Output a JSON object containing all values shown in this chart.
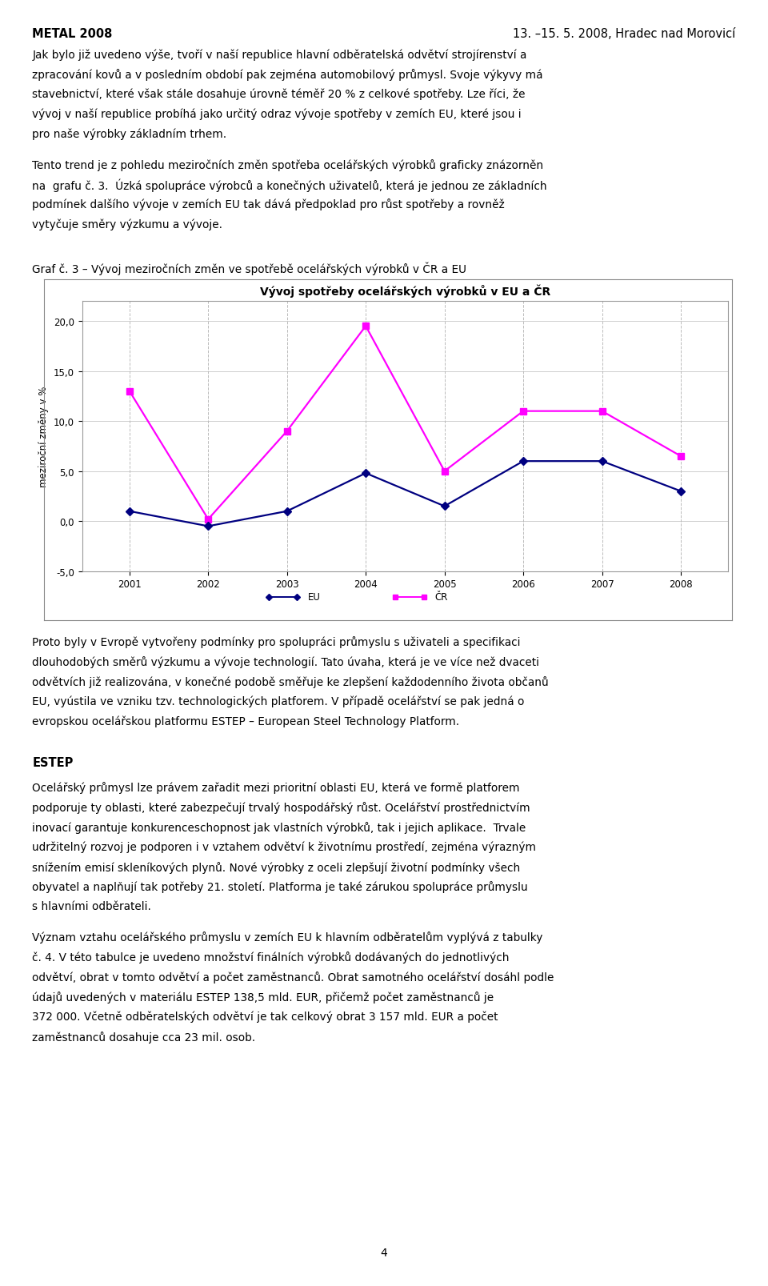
{
  "title": "Vývoj spotřeby ocelářských výrobků v EU a ČR",
  "ylabel": "meziroční změny v %",
  "years": [
    2001,
    2002,
    2003,
    2004,
    2005,
    2006,
    2007,
    2008
  ],
  "eu_values": [
    13.0,
    0.2,
    9.0,
    19.5,
    5.0,
    11.0,
    11.0,
    6.5
  ],
  "cr_values": [
    1.0,
    -0.5,
    1.0,
    4.8,
    1.5,
    6.0,
    6.0,
    3.0
  ],
  "eu_color": "#FF00FF",
  "cr_color": "#000080",
  "eu_label": "EU",
  "cr_label": "ČR",
  "ylim_min": -5.0,
  "ylim_max": 22.0,
  "yticks": [
    -5.0,
    0.0,
    5.0,
    10.0,
    15.0,
    20.0
  ],
  "ytick_labels": [
    "-5,0",
    "0,0",
    "5,0",
    "10,0",
    "15,0",
    "20,0"
  ],
  "bg_color": "#FFFFFF",
  "plot_bg_color": "#FFFFFF",
  "grid_color": "#BBBBBB",
  "title_fontsize": 10,
  "axis_fontsize": 8.5,
  "legend_fontsize": 8.5,
  "header_left": "METAL 2008",
  "header_right": "13. –15. 5. 2008, Hradec nad Morovicí",
  "para1": "Jak bylo již uvedeno výše, tvoří v naší republice hlavní odběratelská odvětví strojírenství a zpracování kovů a v posledním období pak zejména automobilový průmysl. Svoje výkyvy má stavebníctví, které však stále dosahuje úrovně téměř 20 % z celkové spotřeby. Lze říci, že vývoj v naší republice probíhá jako určitý odraz vývoje spotřeby v zemích EU, které jsou i pro naše výrobky základním trhem.",
  "para2": "Tento trend je z pohledu meziročních změn spotřeba ocelářských výrobků graficky znázorněn na  grafu č. 3.  Úzká spolupráce výrobců a konečných uživatelů, která je jednou ze základních podmínek dalšího vývoje v zemích EU tak dává předpoklad pro růst spotřeby a rovněž vytyčuje směry výzkumu a vývoje.",
  "graf_label": "Graf č. 3 – Vývoj meziročních změn ve spotřebě ocelářských výrobků v ČR a EU",
  "para3": "Proto byly v Evropě vytvořeny podmínky pro spolupráci průmyslu s uživateli a specifikaci dlouhodobých směrů výzkumu a vývoje technologií. Tato úhava, která je ve více než dvaceti odvětvích již realizována, v konečné podobě směřuje ke zlepšení každodenního života občanů EU, vyústila ve vzniku tzv. technologických platforem. V případě ocelářství se pak jedná o evropskou ocelářskou platformu ESTEP – European Steel Technology Platform.",
  "estep_title": "ESTEP",
  "para4": "Ocelářský průmysl lze právem zařadit mezi prioritní oblasti EU, která ve formě platforem podporuje ty oblasti, které zabezpečují trvalý hospodářský růst. Ocelářství prostřednictvím inovací garantuje konkurenceschopnost jak vlastních výrobků, tak i jejich aplikace.  Trvale udržitelný rozvoj je podporen i v vztahem odvětví k životnímu prostředí, zejména výrazným snížením emisí skleníkových plynů. Nové výrobky z oceli zlepšují životní podmínky všech obyvatel a naplňují tak potřeby 21. století. Platforma je také zárukou spolupráce průmyslu s hlavními odběrateli.",
  "para5": "Význam vztahu ocelářského průmyslu v zemích EU k hlavním odběratelům vyplývá z tabulky č. 4. V této tabulce je uvedeno množství finálních výrobků dodávaných do jednotlivých odvětví, obrat v tomto odvětví a počet zaměstnanců. Obrat samotného ocelářství dosáhl podle údajů uvedených v materiálu ESTEP 138,5 mld. EUR, přičemž počet zaměstnanců je 372 000. Včetně odběratelských odvětví je tak celkový obrat 3 157 mld. EUR a počet zaměstnanců dosahuje cca 23 mil. osob.",
  "page_number": "4"
}
